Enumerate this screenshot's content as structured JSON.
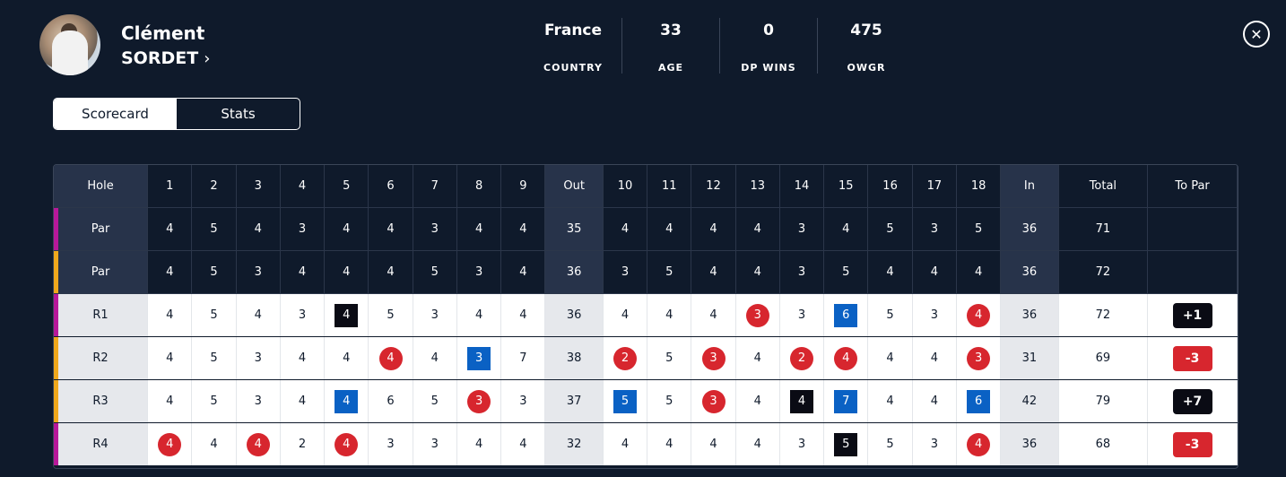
{
  "player": {
    "first_name": "Clément",
    "last_name": "SORDET"
  },
  "stats": [
    {
      "value": "France",
      "label": "COUNTRY"
    },
    {
      "value": "33",
      "label": "AGE"
    },
    {
      "value": "0",
      "label": "DP WINS"
    },
    {
      "value": "475",
      "label": "OWGR"
    }
  ],
  "tabs": [
    {
      "label": "Scorecard",
      "active": true
    },
    {
      "label": "Stats",
      "active": false
    }
  ],
  "colors": {
    "magenta": "#b8189a",
    "gold": "#f0a81c",
    "under": "#d7262e",
    "over": "#0a61c4",
    "dbl": "#0a0b14"
  },
  "header": [
    "Hole",
    "1",
    "2",
    "3",
    "4",
    "5",
    "6",
    "7",
    "8",
    "9",
    "Out",
    "10",
    "11",
    "12",
    "13",
    "14",
    "15",
    "16",
    "17",
    "18",
    "In",
    "Total",
    "To Par"
  ],
  "rows": [
    {
      "label": "Par",
      "stripe": "#b8189a",
      "dark": true,
      "cells": [
        "4",
        "5",
        "4",
        "3",
        "4",
        "4",
        "3",
        "4",
        "4",
        "35",
        "4",
        "4",
        "4",
        "4",
        "3",
        "4",
        "5",
        "3",
        "5",
        "36",
        "71",
        ""
      ]
    },
    {
      "label": "Par",
      "stripe": "#f0a81c",
      "dark": true,
      "cells": [
        "4",
        "5",
        "3",
        "4",
        "4",
        "4",
        "5",
        "3",
        "4",
        "36",
        "3",
        "5",
        "4",
        "4",
        "3",
        "5",
        "4",
        "4",
        "4",
        "36",
        "72",
        ""
      ]
    },
    {
      "label": "R1",
      "stripe": "#b8189a",
      "dark": false,
      "cells": [
        "4",
        "5",
        "4",
        "3",
        "4",
        "5",
        "3",
        "4",
        "4",
        "36",
        "4",
        "4",
        "4",
        "3",
        "3",
        "6",
        "5",
        "3",
        "4",
        "36",
        "72",
        "+1"
      ],
      "marks": {
        "5": "par",
        "13": "birdie",
        "15": "bogey",
        "18": "birdie"
      },
      "topar": "dark"
    },
    {
      "label": "R2",
      "stripe": "#f0a81c",
      "dark": false,
      "cells": [
        "4",
        "5",
        "3",
        "4",
        "4",
        "4",
        "4",
        "3",
        "7",
        "38",
        "2",
        "5",
        "3",
        "4",
        "2",
        "4",
        "4",
        "4",
        "3",
        "31",
        "69",
        "-3"
      ],
      "marks": {
        "6": "birdie",
        "8": "bogey",
        "10": "birdie",
        "12": "birdie",
        "14": "birdie",
        "15": "birdie",
        "18": "birdie"
      },
      "topar": "red"
    },
    {
      "label": "R3",
      "stripe": "#f0a81c",
      "dark": false,
      "cells": [
        "4",
        "5",
        "3",
        "4",
        "4",
        "6",
        "5",
        "3",
        "3",
        "37",
        "5",
        "5",
        "3",
        "4",
        "4",
        "7",
        "4",
        "4",
        "6",
        "42",
        "79",
        "+7"
      ],
      "marks": {
        "5": "bogey",
        "8": "birdie",
        "10": "bogey",
        "12": "birdie",
        "14": "par",
        "15": "bogey",
        "18": "bogey"
      },
      "topar": "dark"
    },
    {
      "label": "R4",
      "stripe": "#b8189a",
      "dark": false,
      "cells": [
        "4",
        "4",
        "4",
        "2",
        "4",
        "3",
        "3",
        "4",
        "4",
        "32",
        "4",
        "4",
        "4",
        "4",
        "3",
        "5",
        "5",
        "3",
        "4",
        "36",
        "68",
        "-3"
      ],
      "marks": {
        "1": "birdie",
        "3": "birdie",
        "5": "birdie",
        "15": "par",
        "18": "birdie"
      },
      "topar": "red"
    }
  ]
}
